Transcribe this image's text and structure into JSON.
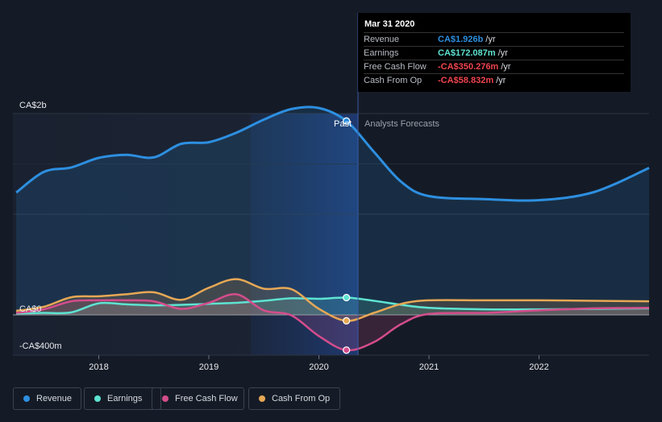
{
  "chart_data": {
    "type": "area",
    "y_axis": {
      "top_label": "CA$2b",
      "zero_label": "CA$0",
      "bottom_label": "-CA$400m",
      "ylim": [
        -400,
        2000
      ],
      "unit": "CA$m"
    },
    "x_ticks": [
      "2018",
      "2019",
      "2020",
      "2021",
      "2022"
    ],
    "x_range": [
      2017.22,
      2023.0
    ],
    "divider_x": 2020.25,
    "past_label": "Past",
    "forecast_label": "Analysts Forecasts",
    "grid": true,
    "legend_position": "bottom-left",
    "series": [
      {
        "name": "Revenue",
        "color": "#2d8fe0",
        "points": [
          [
            2017.25,
            1215
          ],
          [
            2017.5,
            1420
          ],
          [
            2017.75,
            1465
          ],
          [
            2018.0,
            1560
          ],
          [
            2018.25,
            1590
          ],
          [
            2018.5,
            1565
          ],
          [
            2018.75,
            1700
          ],
          [
            2019.0,
            1715
          ],
          [
            2019.25,
            1810
          ],
          [
            2019.5,
            1940
          ],
          [
            2019.75,
            2045
          ],
          [
            2020.0,
            2055
          ],
          [
            2020.25,
            1926
          ],
          [
            2020.5,
            1620
          ],
          [
            2020.75,
            1320
          ],
          [
            2021.0,
            1180
          ],
          [
            2021.5,
            1150
          ],
          [
            2022.0,
            1140
          ],
          [
            2022.5,
            1220
          ],
          [
            2023.0,
            1460
          ]
        ]
      },
      {
        "name": "Earnings",
        "color": "#5ee3d2",
        "points": [
          [
            2017.25,
            15
          ],
          [
            2017.5,
            20
          ],
          [
            2017.75,
            25
          ],
          [
            2018.0,
            115
          ],
          [
            2018.25,
            105
          ],
          [
            2018.5,
            95
          ],
          [
            2018.75,
            100
          ],
          [
            2019.0,
            110
          ],
          [
            2019.25,
            120
          ],
          [
            2019.5,
            140
          ],
          [
            2019.75,
            165
          ],
          [
            2020.0,
            160
          ],
          [
            2020.25,
            172
          ],
          [
            2020.5,
            140
          ],
          [
            2020.75,
            100
          ],
          [
            2021.0,
            70
          ],
          [
            2021.5,
            55
          ],
          [
            2022.0,
            55
          ],
          [
            2022.5,
            60
          ],
          [
            2023.0,
            65
          ]
        ]
      },
      {
        "name": "Free Cash Flow",
        "color": "#d44d8c",
        "points": [
          [
            2017.25,
            20
          ],
          [
            2017.5,
            55
          ],
          [
            2017.75,
            135
          ],
          [
            2018.0,
            145
          ],
          [
            2018.25,
            145
          ],
          [
            2018.5,
            135
          ],
          [
            2018.75,
            60
          ],
          [
            2019.0,
            120
          ],
          [
            2019.25,
            205
          ],
          [
            2019.5,
            45
          ],
          [
            2019.75,
            -5
          ],
          [
            2020.0,
            -210
          ],
          [
            2020.25,
            -350
          ],
          [
            2020.5,
            -270
          ],
          [
            2020.75,
            -90
          ],
          [
            2021.0,
            10
          ],
          [
            2021.5,
            20
          ],
          [
            2022.0,
            45
          ],
          [
            2022.5,
            65
          ],
          [
            2023.0,
            70
          ]
        ]
      },
      {
        "name": "Cash From Op",
        "color": "#e6a855",
        "points": [
          [
            2017.25,
            40
          ],
          [
            2017.5,
            80
          ],
          [
            2017.75,
            175
          ],
          [
            2018.0,
            185
          ],
          [
            2018.25,
            205
          ],
          [
            2018.5,
            225
          ],
          [
            2018.75,
            150
          ],
          [
            2019.0,
            270
          ],
          [
            2019.25,
            355
          ],
          [
            2019.5,
            260
          ],
          [
            2019.75,
            255
          ],
          [
            2020.0,
            60
          ],
          [
            2020.25,
            -59
          ],
          [
            2020.5,
            20
          ],
          [
            2020.75,
            110
          ],
          [
            2021.0,
            145
          ],
          [
            2021.5,
            145
          ],
          [
            2022.0,
            145
          ],
          [
            2022.5,
            140
          ],
          [
            2023.0,
            135
          ]
        ]
      }
    ]
  },
  "tooltip": {
    "date": "Mar 31 2020",
    "rows": [
      {
        "label": "Revenue",
        "value": "CA$1.926b",
        "unit": "/yr",
        "color": "#2d8fe0"
      },
      {
        "label": "Earnings",
        "value": "CA$172.087m",
        "unit": "/yr",
        "color": "#5ee3d2"
      },
      {
        "label": "Free Cash Flow",
        "value": "-CA$350.276m",
        "unit": "/yr",
        "color": "#f0444e"
      },
      {
        "label": "Cash From Op",
        "value": "-CA$58.832m",
        "unit": "/yr",
        "color": "#f0444e"
      }
    ]
  },
  "legend": [
    {
      "label": "Revenue",
      "color": "#2d8fe0"
    },
    {
      "label": "Earnings",
      "color": "#5ee3d2"
    },
    {
      "label": "Free Cash Flow",
      "color": "#d44d8c"
    },
    {
      "label": "Cash From Op",
      "color": "#e6a855"
    }
  ]
}
